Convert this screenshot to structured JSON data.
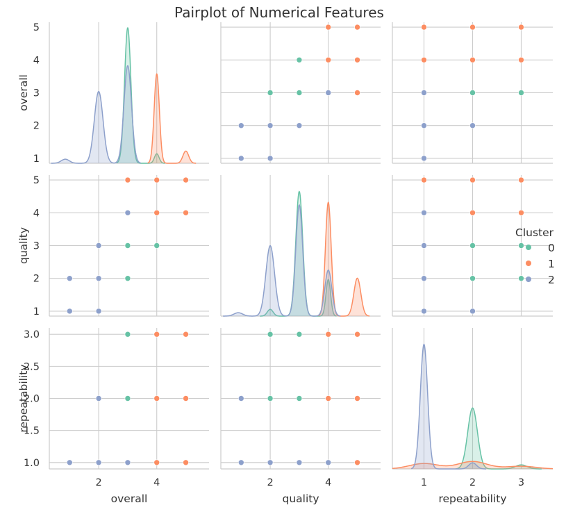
{
  "chart_data": {
    "type": "scatter",
    "title": "Pairplot of Numerical Features",
    "variables": [
      "overall",
      "quality",
      "repeatability"
    ],
    "legend": {
      "title": "Cluster",
      "placement": "right",
      "entries": [
        {
          "label": "0",
          "color": "#66c2a5"
        },
        {
          "label": "1",
          "color": "#fc8d62"
        },
        {
          "label": "2",
          "color": "#8da0cb"
        }
      ]
    },
    "axes": {
      "overall": {
        "label": "overall",
        "lim": [
          0.3,
          5.8
        ],
        "ticks": [
          2,
          4
        ],
        "tick_labels": [
          "2",
          "4"
        ],
        "ylim": [
          0.85,
          5.15
        ],
        "yticks": [
          1,
          2,
          3,
          4,
          5
        ],
        "ytick_labels": [
          "1",
          "2",
          "3",
          "4",
          "5"
        ]
      },
      "quality": {
        "label": "quality",
        "lim": [
          0.3,
          5.8
        ],
        "ticks": [
          2,
          4
        ],
        "tick_labels": [
          "2",
          "4"
        ],
        "ylim": [
          0.85,
          5.15
        ],
        "yticks": [
          1,
          2,
          3,
          4,
          5
        ],
        "ytick_labels": [
          "1",
          "2",
          "3",
          "4",
          "5"
        ]
      },
      "repeatability": {
        "label": "repeatability",
        "lim": [
          0.35,
          3.65
        ],
        "ticks": [
          1,
          2,
          3
        ],
        "tick_labels": [
          "1",
          "2",
          "3"
        ],
        "ylim": [
          0.9,
          3.1
        ],
        "yticks": [
          1.0,
          1.5,
          2.0,
          2.5,
          3.0
        ],
        "ytick_labels": [
          "1.0",
          "1.5",
          "2.0",
          "2.5",
          "3.0"
        ]
      }
    },
    "grid": true,
    "scatter_panels": [
      {
        "x": "quality",
        "y": "overall",
        "points": [
          {
            "c": 0,
            "x": 2,
            "y": 3
          },
          {
            "c": 0,
            "x": 3,
            "y": 3
          },
          {
            "c": 0,
            "x": 3,
            "y": 4
          },
          {
            "c": 1,
            "x": 4,
            "y": 3
          },
          {
            "c": 1,
            "x": 4,
            "y": 4
          },
          {
            "c": 1,
            "x": 4,
            "y": 5
          },
          {
            "c": 1,
            "x": 5,
            "y": 3
          },
          {
            "c": 1,
            "x": 5,
            "y": 4
          },
          {
            "c": 1,
            "x": 5,
            "y": 5
          },
          {
            "c": 2,
            "x": 1,
            "y": 1
          },
          {
            "c": 2,
            "x": 1,
            "y": 2
          },
          {
            "c": 2,
            "x": 2,
            "y": 1
          },
          {
            "c": 2,
            "x": 2,
            "y": 2
          },
          {
            "c": 2,
            "x": 3,
            "y": 2
          },
          {
            "c": 2,
            "x": 4,
            "y": 3
          }
        ]
      },
      {
        "x": "repeatability",
        "y": "overall",
        "points": [
          {
            "c": 0,
            "x": 2,
            "y": 3
          },
          {
            "c": 0,
            "x": 3,
            "y": 3
          },
          {
            "c": 1,
            "x": 1,
            "y": 4
          },
          {
            "c": 1,
            "x": 1,
            "y": 5
          },
          {
            "c": 1,
            "x": 2,
            "y": 4
          },
          {
            "c": 1,
            "x": 2,
            "y": 5
          },
          {
            "c": 1,
            "x": 3,
            "y": 4
          },
          {
            "c": 1,
            "x": 3,
            "y": 5
          },
          {
            "c": 2,
            "x": 1,
            "y": 1
          },
          {
            "c": 2,
            "x": 1,
            "y": 2
          },
          {
            "c": 2,
            "x": 1,
            "y": 3
          },
          {
            "c": 2,
            "x": 2,
            "y": 2
          }
        ]
      },
      {
        "x": "overall",
        "y": "quality",
        "points": [
          {
            "c": 0,
            "x": 3,
            "y": 2
          },
          {
            "c": 0,
            "x": 3,
            "y": 3
          },
          {
            "c": 0,
            "x": 4,
            "y": 3
          },
          {
            "c": 1,
            "x": 3,
            "y": 5
          },
          {
            "c": 1,
            "x": 4,
            "y": 4
          },
          {
            "c": 1,
            "x": 4,
            "y": 5
          },
          {
            "c": 1,
            "x": 5,
            "y": 4
          },
          {
            "c": 1,
            "x": 5,
            "y": 5
          },
          {
            "c": 2,
            "x": 1,
            "y": 1
          },
          {
            "c": 2,
            "x": 1,
            "y": 2
          },
          {
            "c": 2,
            "x": 2,
            "y": 1
          },
          {
            "c": 2,
            "x": 2,
            "y": 2
          },
          {
            "c": 2,
            "x": 2,
            "y": 3
          },
          {
            "c": 2,
            "x": 3,
            "y": 4
          }
        ]
      },
      {
        "x": "repeatability",
        "y": "quality",
        "points": [
          {
            "c": 0,
            "x": 2,
            "y": 2
          },
          {
            "c": 0,
            "x": 2,
            "y": 3
          },
          {
            "c": 0,
            "x": 3,
            "y": 2
          },
          {
            "c": 0,
            "x": 3,
            "y": 3
          },
          {
            "c": 1,
            "x": 1,
            "y": 5
          },
          {
            "c": 1,
            "x": 2,
            "y": 4
          },
          {
            "c": 1,
            "x": 2,
            "y": 5
          },
          {
            "c": 1,
            "x": 3,
            "y": 4
          },
          {
            "c": 1,
            "x": 3,
            "y": 5
          },
          {
            "c": 2,
            "x": 1,
            "y": 1
          },
          {
            "c": 2,
            "x": 1,
            "y": 2
          },
          {
            "c": 2,
            "x": 1,
            "y": 3
          },
          {
            "c": 2,
            "x": 1,
            "y": 4
          },
          {
            "c": 2,
            "x": 2,
            "y": 1
          }
        ]
      },
      {
        "x": "overall",
        "y": "repeatability",
        "points": [
          {
            "c": 0,
            "x": 3,
            "y": 2
          },
          {
            "c": 0,
            "x": 3,
            "y": 3
          },
          {
            "c": 1,
            "x": 4,
            "y": 1
          },
          {
            "c": 1,
            "x": 4,
            "y": 2
          },
          {
            "c": 1,
            "x": 4,
            "y": 3
          },
          {
            "c": 1,
            "x": 5,
            "y": 1
          },
          {
            "c": 1,
            "x": 5,
            "y": 2
          },
          {
            "c": 1,
            "x": 5,
            "y": 3
          },
          {
            "c": 2,
            "x": 1,
            "y": 1
          },
          {
            "c": 2,
            "x": 2,
            "y": 1
          },
          {
            "c": 2,
            "x": 2,
            "y": 2
          },
          {
            "c": 2,
            "x": 3,
            "y": 1
          }
        ]
      },
      {
        "x": "quality",
        "y": "repeatability",
        "points": [
          {
            "c": 0,
            "x": 2,
            "y": 2
          },
          {
            "c": 0,
            "x": 2,
            "y": 3
          },
          {
            "c": 0,
            "x": 3,
            "y": 2
          },
          {
            "c": 0,
            "x": 3,
            "y": 3
          },
          {
            "c": 1,
            "x": 4,
            "y": 2
          },
          {
            "c": 1,
            "x": 4,
            "y": 3
          },
          {
            "c": 1,
            "x": 5,
            "y": 1
          },
          {
            "c": 1,
            "x": 5,
            "y": 2
          },
          {
            "c": 1,
            "x": 5,
            "y": 3
          },
          {
            "c": 2,
            "x": 1,
            "y": 1
          },
          {
            "c": 2,
            "x": 1,
            "y": 2
          },
          {
            "c": 2,
            "x": 2,
            "y": 1
          },
          {
            "c": 2,
            "x": 3,
            "y": 1
          },
          {
            "c": 2,
            "x": 4,
            "y": 1
          }
        ]
      }
    ],
    "kde_panels": [
      {
        "var": "overall",
        "curves": [
          {
            "c": 0,
            "peaks": [
              {
                "x": 3,
                "h": 1.0,
                "w": 0.11
              },
              {
                "x": 4,
                "h": 0.07,
                "w": 0.08
              }
            ]
          },
          {
            "c": 1,
            "peaks": [
              {
                "x": 4,
                "h": 0.66,
                "w": 0.09
              },
              {
                "x": 5,
                "h": 0.09,
                "w": 0.1
              }
            ]
          },
          {
            "c": 2,
            "peaks": [
              {
                "x": 0.85,
                "h": 0.03,
                "w": 0.14
              },
              {
                "x": 2,
                "h": 0.53,
                "w": 0.15
              },
              {
                "x": 3,
                "h": 0.72,
                "w": 0.13
              }
            ]
          }
        ]
      },
      {
        "var": "quality",
        "curves": [
          {
            "c": 0,
            "peaks": [
              {
                "x": 2,
                "h": 0.05,
                "w": 0.1
              },
              {
                "x": 3,
                "h": 0.92,
                "w": 0.12
              },
              {
                "x": 4,
                "h": 0.27,
                "w": 0.08
              }
            ]
          },
          {
            "c": 1,
            "peaks": [
              {
                "x": 4,
                "h": 0.84,
                "w": 0.1
              },
              {
                "x": 5,
                "h": 0.28,
                "w": 0.12
              }
            ]
          },
          {
            "c": 2,
            "peaks": [
              {
                "x": 0.9,
                "h": 0.025,
                "w": 0.15
              },
              {
                "x": 2,
                "h": 0.52,
                "w": 0.15
              },
              {
                "x": 3,
                "h": 0.82,
                "w": 0.12
              },
              {
                "x": 4,
                "h": 0.34,
                "w": 0.12
              }
            ]
          }
        ]
      },
      {
        "var": "repeatability",
        "curves": [
          {
            "c": 0,
            "peaks": [
              {
                "x": 2,
                "h": 0.45,
                "w": 0.1
              },
              {
                "x": 3,
                "h": 0.03,
                "w": 0.12
              }
            ]
          },
          {
            "c": 1,
            "peaks": [
              {
                "x": 1,
                "h": 0.04,
                "w": 0.3
              },
              {
                "x": 2,
                "h": 0.055,
                "w": 0.3
              },
              {
                "x": 3,
                "h": 0.02,
                "w": 0.3
              }
            ]
          },
          {
            "c": 2,
            "peaks": [
              {
                "x": 1,
                "h": 0.92,
                "w": 0.075
              },
              {
                "x": 2,
                "h": 0.045,
                "w": 0.08
              }
            ]
          }
        ]
      }
    ]
  }
}
